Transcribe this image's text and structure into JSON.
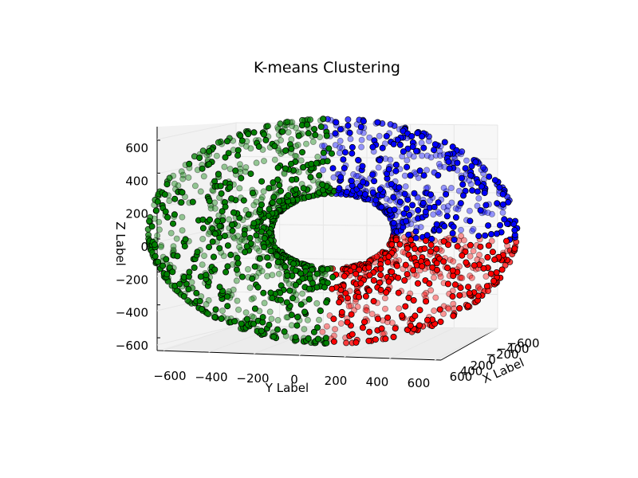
{
  "chart_data": {
    "type": "scatter",
    "projection": "3d",
    "title": "K-means Clustering",
    "xlabel": "X Label",
    "ylabel": "Y Label",
    "zlabel": "Z Label",
    "x_ticks": [
      "600",
      "400",
      "200",
      "0",
      "−200",
      "−400",
      "−600"
    ],
    "y_ticks": [
      "−600",
      "−400",
      "−200",
      "0",
      "200",
      "400",
      "600"
    ],
    "z_ticks": [
      "600",
      "400",
      "200",
      "0",
      "−200",
      "−400",
      "−600"
    ],
    "xlim": [
      -600,
      600
    ],
    "ylim": [
      -650,
      650
    ],
    "zlim": [
      -650,
      650
    ],
    "grid": true,
    "shape": "torus",
    "torus_major_radius": 400,
    "torus_minor_radius": 200,
    "point_count_per_cluster": 700,
    "series": [
      {
        "color": "#008000",
        "y_range": [
          -600,
          100
        ],
        "region": "left"
      },
      {
        "color": "#0000ff",
        "y_range": [
          -100,
          600
        ],
        "region": "upper-right"
      },
      {
        "color": "#ff0000",
        "y_range": [
          -100,
          600
        ],
        "region": "lower-right"
      }
    ]
  }
}
